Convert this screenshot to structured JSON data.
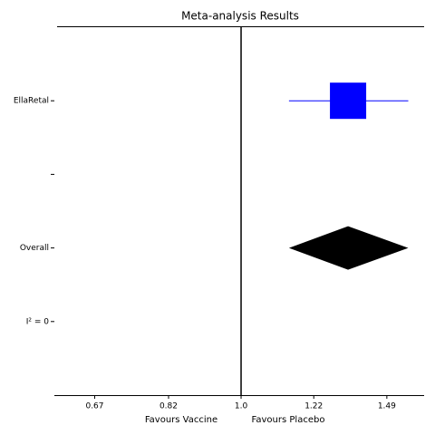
{
  "chart_data": {
    "type": "forest",
    "title": "Meta-analysis Results",
    "categories": [
      "EllaRetal",
      null,
      "Overall",
      "I² = 0"
    ],
    "estimates": [
      1.34,
      null,
      1.34,
      null
    ],
    "ci_low": [
      1.14,
      null,
      1.14,
      null
    ],
    "ci_high": [
      1.58,
      null,
      1.58,
      null
    ],
    "markers": [
      "square",
      null,
      "diamond",
      null
    ],
    "colors": [
      "#0000ff",
      null,
      "#000000",
      null
    ],
    "reference": 1,
    "xscale": "log",
    "xlim": [
      0.6,
      1.65
    ],
    "xticks": [
      0.67,
      0.82,
      {
        "value": 1,
        "label": "1.0"
      },
      1.22,
      1.49
    ],
    "xlabel_left": "Favours Vaccine",
    "xlabel_right": "Favours Placebo"
  }
}
